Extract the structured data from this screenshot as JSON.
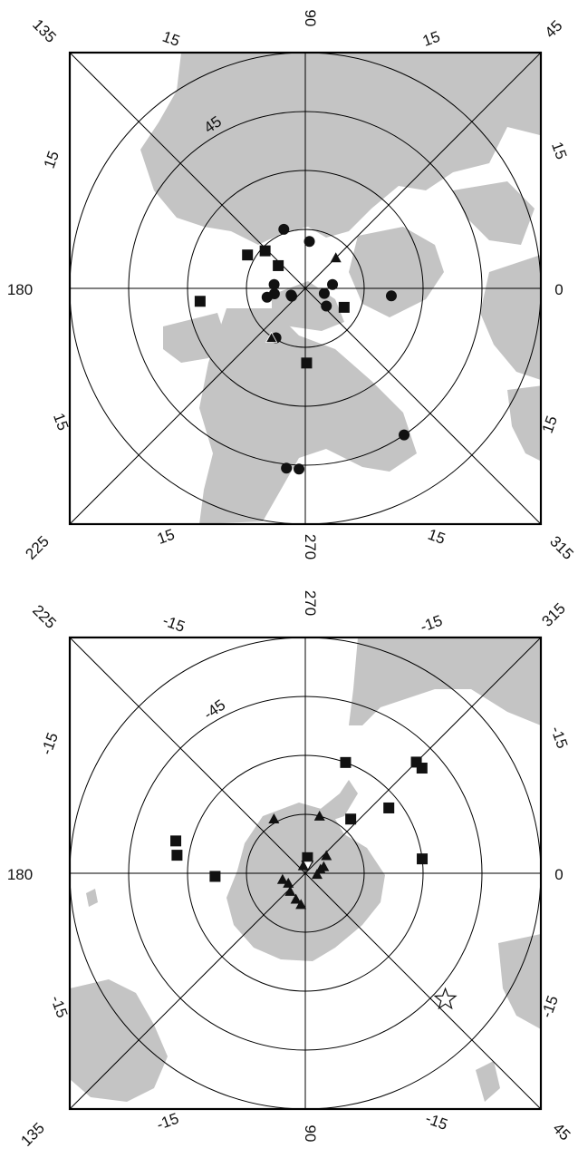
{
  "maps": [
    {
      "id": "north",
      "top_label": "90",
      "bottom_label": "270",
      "left_label": "180",
      "right_label": "0",
      "tl_label": "135",
      "tr_label": "45",
      "bl_label": "225",
      "br_label": "315",
      "ring_labels": [
        "15",
        "15",
        "15",
        "15",
        "15",
        "15",
        "15",
        "15",
        "45"
      ],
      "markers": [
        {
          "lon": 85,
          "lat": 78,
          "shape": "circle"
        },
        {
          "lon": 110,
          "lat": 74,
          "shape": "circle"
        },
        {
          "lon": 150,
          "lat": 73,
          "shape": "square"
        },
        {
          "lon": 137,
          "lat": 76,
          "shape": "square"
        },
        {
          "lon": 140,
          "lat": 81,
          "shape": "square"
        },
        {
          "lon": 45,
          "lat": 79,
          "shape": "triangle"
        },
        {
          "lon": 190,
          "lat": 82,
          "shape": "circle"
        },
        {
          "lon": 193,
          "lat": 80,
          "shape": "circle"
        },
        {
          "lon": 173,
          "lat": 82,
          "shape": "circle"
        },
        {
          "lon": 210,
          "lat": 86,
          "shape": "circle"
        },
        {
          "lon": 205,
          "lat": 86,
          "shape": "circle"
        },
        {
          "lon": 345,
          "lat": 85,
          "shape": "circle"
        },
        {
          "lon": 8,
          "lat": 83,
          "shape": "circle"
        },
        {
          "lon": 320,
          "lat": 83,
          "shape": "circle"
        },
        {
          "lon": 334,
          "lat": 79,
          "shape": "square"
        },
        {
          "lon": 187,
          "lat": 63,
          "shape": "square"
        },
        {
          "lon": 355,
          "lat": 68,
          "shape": "circle"
        },
        {
          "lon": 237,
          "lat": 75,
          "shape": "triangle-circle"
        },
        {
          "lon": 271,
          "lat": 71,
          "shape": "square"
        },
        {
          "lon": 268,
          "lat": 44,
          "shape": "circle"
        },
        {
          "lon": 264,
          "lat": 44,
          "shape": "circle"
        },
        {
          "lon": 304,
          "lat": 45,
          "shape": "circle"
        }
      ]
    },
    {
      "id": "south",
      "top_label": "270",
      "bottom_label": "90",
      "left_label": "180",
      "right_label": "0",
      "tl_label": "225",
      "tr_label": "315",
      "bl_label": "135",
      "br_label": "45",
      "ring_labels": [
        "-15",
        "-15",
        "-15",
        "-15",
        "-15",
        "-15",
        "-15",
        "-15",
        "-45"
      ],
      "markers": [
        {
          "lon": 290,
          "lat": -60,
          "shape": "square"
        },
        {
          "lon": 315,
          "lat": -50,
          "shape": "square"
        },
        {
          "lon": 318,
          "lat": -50,
          "shape": "square"
        },
        {
          "lon": 322,
          "lat": -63,
          "shape": "square"
        },
        {
          "lon": 310,
          "lat": -72,
          "shape": "square"
        },
        {
          "lon": 240,
          "lat": -74,
          "shape": "triangle"
        },
        {
          "lon": 284,
          "lat": -75,
          "shape": "triangle"
        },
        {
          "lon": 278,
          "lat": -86,
          "shape": "square"
        },
        {
          "lon": 285,
          "lat": -88,
          "shape": "triangle-down"
        },
        {
          "lon": 255,
          "lat": -88,
          "shape": "triangle"
        },
        {
          "lon": 320,
          "lat": -83,
          "shape": "triangle"
        },
        {
          "lon": 5,
          "lat": -87,
          "shape": "triangle"
        },
        {
          "lon": 340,
          "lat": -85,
          "shape": "triangle"
        },
        {
          "lon": 345,
          "lat": -86,
          "shape": "triangle"
        },
        {
          "lon": 165,
          "lat": -84,
          "shape": "triangle"
        },
        {
          "lon": 150,
          "lat": -85,
          "shape": "triangle"
        },
        {
          "lon": 130,
          "lat": -84,
          "shape": "triangle"
        },
        {
          "lon": 110,
          "lat": -83,
          "shape": "triangle"
        },
        {
          "lon": 98,
          "lat": -82,
          "shape": "triangle"
        },
        {
          "lon": 178,
          "lat": -67,
          "shape": "square"
        },
        {
          "lon": 188,
          "lat": -57,
          "shape": "square"
        },
        {
          "lon": 194,
          "lat": -56,
          "shape": "square"
        },
        {
          "lon": 353,
          "lat": -60,
          "shape": "square"
        },
        {
          "lon": 42,
          "lat": -42,
          "shape": "star"
        }
      ]
    }
  ],
  "colors": {
    "land": "#c4c4c4",
    "ink": "#111111"
  }
}
